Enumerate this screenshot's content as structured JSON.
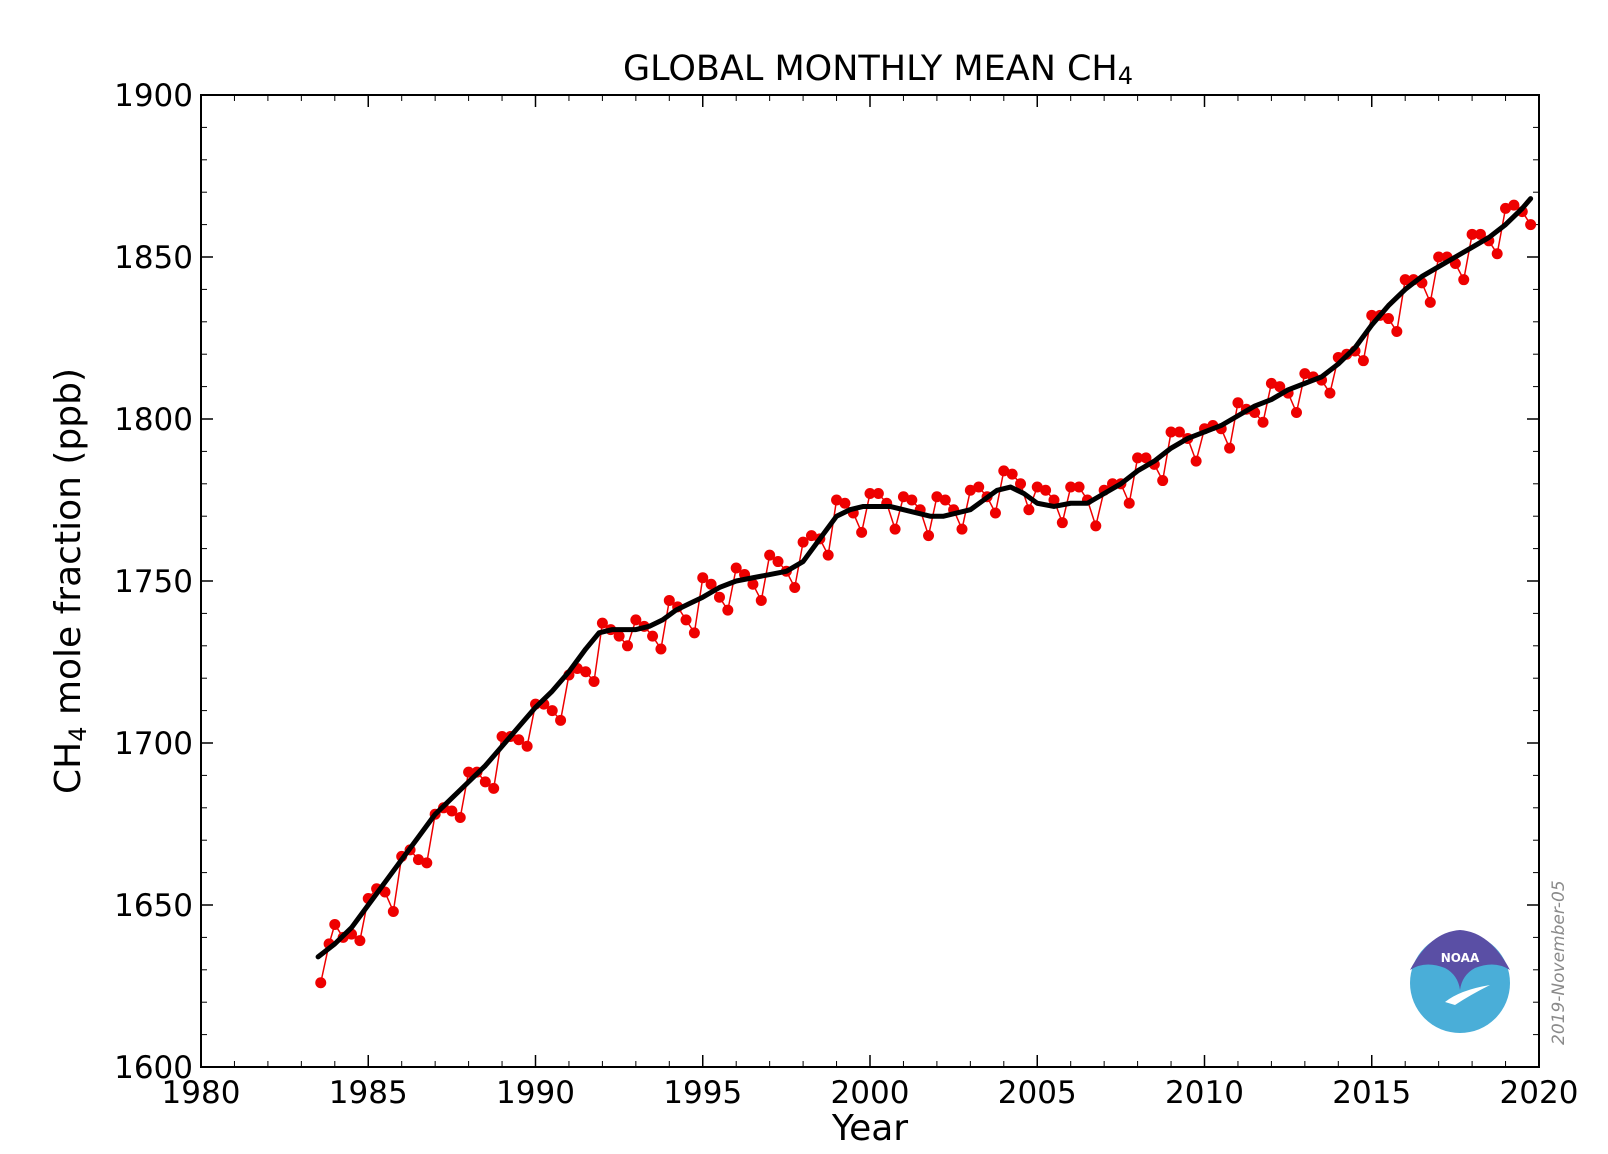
{
  "chart_data": {
    "type": "line",
    "title": "GLOBAL MONTHLY MEAN CH",
    "title_subscript": "4",
    "xlabel": "Year",
    "ylabel_prefix": "CH",
    "ylabel_subscript": "4",
    "ylabel_suffix": " mole fraction (ppb)",
    "xlim": [
      1980,
      2020
    ],
    "ylim": [
      1600,
      1900
    ],
    "xticks": [
      1980,
      1985,
      1990,
      1995,
      2000,
      2005,
      2010,
      2015,
      2020
    ],
    "yticks": [
      1600,
      1650,
      1700,
      1750,
      1800,
      1850,
      1900
    ],
    "grid": false,
    "series": [
      {
        "color": "#ee0000",
        "marker": "circle",
        "x": [
          1983.58,
          1983.83,
          1984.0,
          1984.25,
          1984.5,
          1984.75,
          1985.0,
          1985.25,
          1985.5,
          1985.75,
          1986.0,
          1986.25,
          1986.5,
          1986.75,
          1987.0,
          1987.25,
          1987.5,
          1987.75,
          1988.0,
          1988.25,
          1988.5,
          1988.75,
          1989.0,
          1989.25,
          1989.5,
          1989.75,
          1990.0,
          1990.25,
          1990.5,
          1990.75,
          1991.0,
          1991.25,
          1991.5,
          1991.75,
          1992.0,
          1992.25,
          1992.5,
          1992.75,
          1993.0,
          1993.25,
          1993.5,
          1993.75,
          1994.0,
          1994.25,
          1994.5,
          1994.75,
          1995.0,
          1995.25,
          1995.5,
          1995.75,
          1996.0,
          1996.25,
          1996.5,
          1996.75,
          1997.0,
          1997.25,
          1997.5,
          1997.75,
          1998.0,
          1998.25,
          1998.5,
          1998.75,
          1999.0,
          1999.25,
          1999.5,
          1999.75,
          2000.0,
          2000.25,
          2000.5,
          2000.75,
          2001.0,
          2001.25,
          2001.5,
          2001.75,
          2002.0,
          2002.25,
          2002.5,
          2002.75,
          2003.0,
          2003.25,
          2003.5,
          2003.75,
          2004.0,
          2004.25,
          2004.5,
          2004.75,
          2005.0,
          2005.25,
          2005.5,
          2005.75,
          2006.0,
          2006.25,
          2006.5,
          2006.75,
          2007.0,
          2007.25,
          2007.5,
          2007.75,
          2008.0,
          2008.25,
          2008.5,
          2008.75,
          2009.0,
          2009.25,
          2009.5,
          2009.75,
          2010.0,
          2010.25,
          2010.5,
          2010.75,
          2011.0,
          2011.25,
          2011.5,
          2011.75,
          2012.0,
          2012.25,
          2012.5,
          2012.75,
          2013.0,
          2013.25,
          2013.5,
          2013.75,
          2014.0,
          2014.25,
          2014.5,
          2014.75,
          2015.0,
          2015.25,
          2015.5,
          2015.75,
          2016.0,
          2016.25,
          2016.5,
          2016.75,
          2017.0,
          2017.25,
          2017.5,
          2017.75,
          2018.0,
          2018.25,
          2018.5,
          2018.75,
          2019.0,
          2019.25,
          2019.5,
          2019.75
        ],
        "y": [
          1626,
          1638,
          1644,
          1640,
          1641,
          1639,
          1652,
          1655,
          1654,
          1648,
          1665,
          1667,
          1664,
          1663,
          1678,
          1680,
          1679,
          1677,
          1691,
          1691,
          1688,
          1686,
          1702,
          1702,
          1701,
          1699,
          1712,
          1712,
          1710,
          1707,
          1721,
          1723,
          1722,
          1719,
          1737,
          1735,
          1733,
          1730,
          1738,
          1736,
          1733,
          1729,
          1744,
          1742,
          1738,
          1734,
          1751,
          1749,
          1745,
          1741,
          1754,
          1752,
          1749,
          1744,
          1758,
          1756,
          1753,
          1748,
          1762,
          1764,
          1763,
          1758,
          1775,
          1774,
          1771,
          1765,
          1777,
          1777,
          1774,
          1766,
          1776,
          1775,
          1772,
          1764,
          1776,
          1775,
          1772,
          1766,
          1778,
          1779,
          1776,
          1771,
          1784,
          1783,
          1780,
          1772,
          1779,
          1778,
          1775,
          1768,
          1779,
          1779,
          1775,
          1767,
          1778,
          1780,
          1780,
          1774,
          1788,
          1788,
          1786,
          1781,
          1796,
          1796,
          1794,
          1787,
          1797,
          1798,
          1797,
          1791,
          1805,
          1803,
          1802,
          1799,
          1811,
          1810,
          1808,
          1802,
          1814,
          1813,
          1812,
          1808,
          1819,
          1820,
          1821,
          1818,
          1832,
          1832,
          1831,
          1827,
          1843,
          1843,
          1842,
          1836,
          1850,
          1850,
          1848,
          1843,
          1857,
          1857,
          1855,
          1851,
          1865,
          1866,
          1864,
          1860
        ]
      },
      {
        "color": "#000000",
        "marker": "none",
        "x": [
          1983.5,
          1984.0,
          1984.5,
          1985.0,
          1985.5,
          1986.0,
          1986.5,
          1987.0,
          1987.5,
          1988.0,
          1988.5,
          1989.0,
          1989.5,
          1990.0,
          1990.5,
          1991.0,
          1991.5,
          1991.9,
          1992.3,
          1992.7,
          1993.0,
          1993.4,
          1993.8,
          1994.2,
          1994.6,
          1995.0,
          1995.5,
          1996.0,
          1996.5,
          1997.0,
          1997.5,
          1998.0,
          1998.5,
          1999.0,
          1999.4,
          1999.8,
          2000.2,
          2000.6,
          2001.0,
          2001.4,
          2001.8,
          2002.2,
          2002.6,
          2003.0,
          2003.4,
          2003.8,
          2004.2,
          2004.6,
          2005.0,
          2005.5,
          2006.0,
          2006.5,
          2007.0,
          2007.5,
          2008.0,
          2008.5,
          2009.0,
          2009.5,
          2010.0,
          2010.5,
          2011.0,
          2011.5,
          2012.0,
          2012.5,
          2013.0,
          2013.5,
          2014.0,
          2014.5,
          2015.0,
          2015.5,
          2016.0,
          2016.5,
          2017.0,
          2017.5,
          2018.0,
          2018.5,
          2019.0,
          2019.5,
          2019.75
        ],
        "y": [
          1634,
          1638,
          1643,
          1650,
          1657,
          1664,
          1671,
          1678,
          1683,
          1688,
          1693,
          1699,
          1705,
          1711,
          1716,
          1722,
          1729,
          1734,
          1735,
          1735,
          1735,
          1736,
          1738,
          1741,
          1743,
          1745,
          1748,
          1750,
          1751,
          1752,
          1753,
          1756,
          1763,
          1770,
          1772,
          1773,
          1773,
          1773,
          1772,
          1771,
          1770,
          1770,
          1771,
          1772,
          1775,
          1778,
          1779,
          1777,
          1774,
          1773,
          1774,
          1774,
          1777,
          1780,
          1784,
          1787,
          1791,
          1794,
          1796,
          1798,
          1801,
          1804,
          1806,
          1809,
          1811,
          1813,
          1817,
          1822,
          1829,
          1835,
          1840,
          1844,
          1847,
          1850,
          1853,
          1856,
          1860,
          1865,
          1868
        ]
      }
    ]
  },
  "annotations": {
    "watermark": "2019-November-05",
    "logo_text": "NOAA"
  },
  "colors": {
    "data_line": "#ee0000",
    "trend_line": "#000000",
    "logo_top": "#5a4fa5",
    "logo_bottom": "#4aaed8"
  }
}
